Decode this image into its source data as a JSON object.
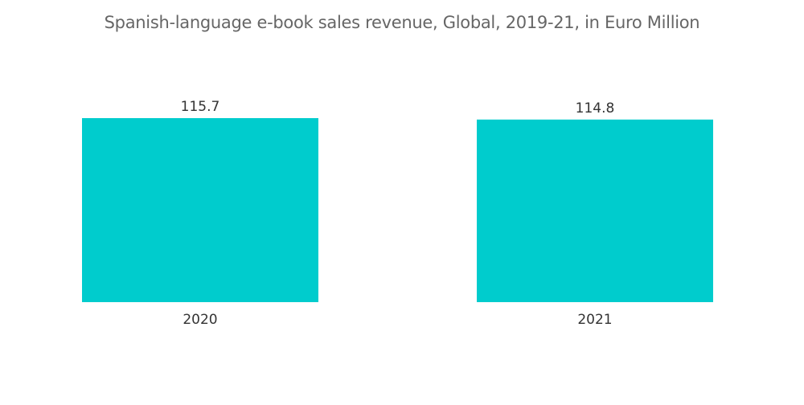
{
  "chart_data": {
    "type": "bar",
    "title": "Spanish-language e-book sales revenue, Global, 2019-21, in Euro Million",
    "categories": [
      "2020",
      "2021"
    ],
    "values": [
      115.7,
      114.8
    ],
    "data_labels": [
      "115.7",
      "114.8"
    ],
    "xlabel": "",
    "ylabel": "",
    "grid": false,
    "legend": "none",
    "bar_color": "#00cccd"
  }
}
